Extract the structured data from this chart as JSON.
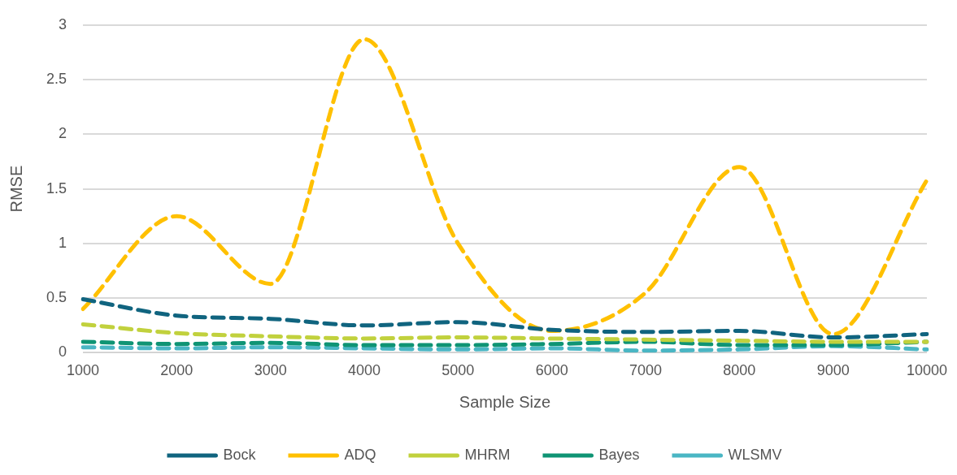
{
  "chart_data": {
    "type": "line",
    "xlabel": "Sample Size",
    "ylabel": "RMSE",
    "categories": [
      "1000",
      "2000",
      "3000",
      "4000",
      "5000",
      "6000",
      "7000",
      "8000",
      "9000",
      "10000"
    ],
    "series": [
      {
        "name": "Bock",
        "color": "#10647f",
        "values": [
          0.49,
          0.34,
          0.31,
          0.25,
          0.28,
          0.21,
          0.19,
          0.2,
          0.14,
          0.17
        ]
      },
      {
        "name": "ADQ",
        "color": "#ffc000",
        "values": [
          0.4,
          1.25,
          0.63,
          2.87,
          1.0,
          0.2,
          0.55,
          1.7,
          0.17,
          1.58
        ]
      },
      {
        "name": "MHRM",
        "color": "#c1d13d",
        "values": [
          0.26,
          0.18,
          0.15,
          0.13,
          0.14,
          0.13,
          0.12,
          0.11,
          0.1,
          0.1
        ]
      },
      {
        "name": "Bayes",
        "color": "#0f9474",
        "values": [
          0.1,
          0.08,
          0.09,
          0.07,
          0.07,
          0.08,
          0.1,
          0.07,
          0.07,
          0.1
        ]
      },
      {
        "name": "WLSMV",
        "color": "#4ab6c4",
        "values": [
          0.05,
          0.04,
          0.05,
          0.04,
          0.03,
          0.04,
          0.02,
          0.03,
          0.06,
          0.03
        ]
      }
    ],
    "ylim": [
      0,
      3
    ],
    "yticks": [
      0,
      0.5,
      1,
      1.5,
      2,
      2.5,
      3
    ],
    "grid": "y",
    "legend": "bottom",
    "line_style": "dashed",
    "marker": "none"
  }
}
